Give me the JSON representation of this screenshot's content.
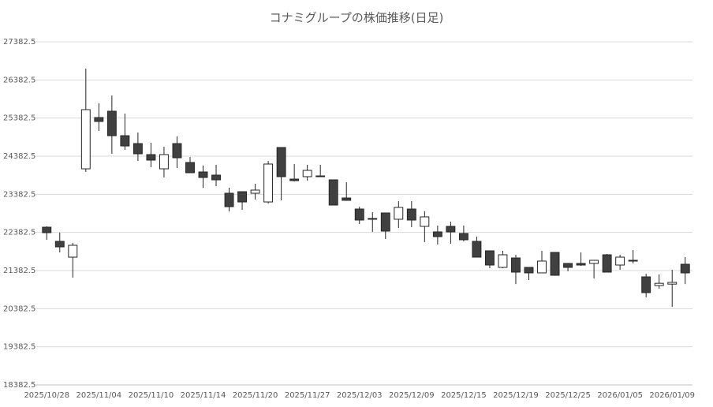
{
  "chart_data": {
    "type": "candlestick",
    "title": "コナミグループの株価推移(日足)",
    "categories": [
      "2025/10/28",
      null,
      null,
      null,
      "2025/11/04",
      null,
      null,
      null,
      "2025/11/10",
      null,
      null,
      null,
      "2025/11/14",
      null,
      null,
      null,
      "2025/11/20",
      null,
      null,
      null,
      "2025/11/27",
      null,
      null,
      null,
      "2025/12/03",
      null,
      null,
      null,
      "2025/12/09",
      null,
      null,
      null,
      "2025/12/15",
      null,
      null,
      null,
      "2025/12/19",
      null,
      null,
      null,
      "2025/12/25",
      null,
      null,
      null,
      "2026/01/05",
      null,
      null,
      null,
      "2026/01/09",
      null
    ],
    "open": [
      22520,
      22148,
      21734,
      24051,
      25396,
      25562,
      24920,
      24713,
      24424,
      24051,
      24713,
      24217,
      23969,
      23886,
      23410,
      23451,
      23410,
      23182,
      24610,
      23782,
      23845,
      23865,
      23762,
      23286,
      22996,
      22748,
      22893,
      22728,
      22996,
      22541,
      22396,
      22541,
      22355,
      22148,
      21900,
      21465,
      21713,
      21465,
      21321,
      21858,
      21569,
      21569,
      21569,
      21796,
      21527,
      21651,
      21217,
      20989,
      21027,
      21548
    ],
    "high": [
      22541,
      22376,
      22107,
      26679,
      25769,
      25976,
      25500,
      25003,
      24734,
      24631,
      24900,
      24362,
      24134,
      24155,
      23555,
      23451,
      23658,
      24258,
      24610,
      24176,
      24155,
      24155,
      23762,
      23700,
      23058,
      22914,
      22893,
      23203,
      23203,
      22934,
      22562,
      22665,
      22562,
      22272,
      21900,
      21900,
      21796,
      21465,
      21900,
      21858,
      21569,
      21858,
      21651,
      21817,
      21796,
      21920,
      21300,
      21279,
      21403,
      21734
    ],
    "low": [
      22190,
      21858,
      21196,
      23969,
      25044,
      24445,
      24548,
      24258,
      24093,
      23824,
      24072,
      23948,
      23555,
      23596,
      22934,
      22976,
      23244,
      23141,
      23224,
      23720,
      23741,
      23845,
      23100,
      23224,
      22603,
      22396,
      22210,
      22500,
      22520,
      22128,
      22065,
      22086,
      22148,
      21734,
      21444,
      21444,
      21027,
      21134,
      21321,
      21258,
      21362,
      21507,
      21176,
      21341,
      21403,
      21569,
      20679,
      20906,
      20431,
      21027
    ],
    "close": [
      22376,
      22003,
      22045,
      25603,
      25293,
      24920,
      24651,
      24445,
      24279,
      24424,
      24341,
      23948,
      23824,
      23762,
      23058,
      23182,
      23493,
      24176,
      23845,
      23741,
      24010,
      23845,
      23100,
      23224,
      22707,
      22728,
      22417,
      23038,
      22707,
      22790,
      22272,
      22396,
      22190,
      21734,
      21527,
      21796,
      21341,
      21321,
      21631,
      21258,
      21465,
      21527,
      21651,
      21341,
      21734,
      21631,
      20803,
      21048,
      21072,
      21321
    ],
    "up_color": "#ffffff",
    "down_color": "#404040",
    "edge_color": "#262626",
    "ylim": [
      18382.5,
      27382.5
    ],
    "yticks": [
      18382.5,
      19382.5,
      20382.5,
      21382.5,
      22382.5,
      23382.5,
      24382.5,
      25382.5,
      26382.5,
      27382.5
    ],
    "grid": true
  }
}
